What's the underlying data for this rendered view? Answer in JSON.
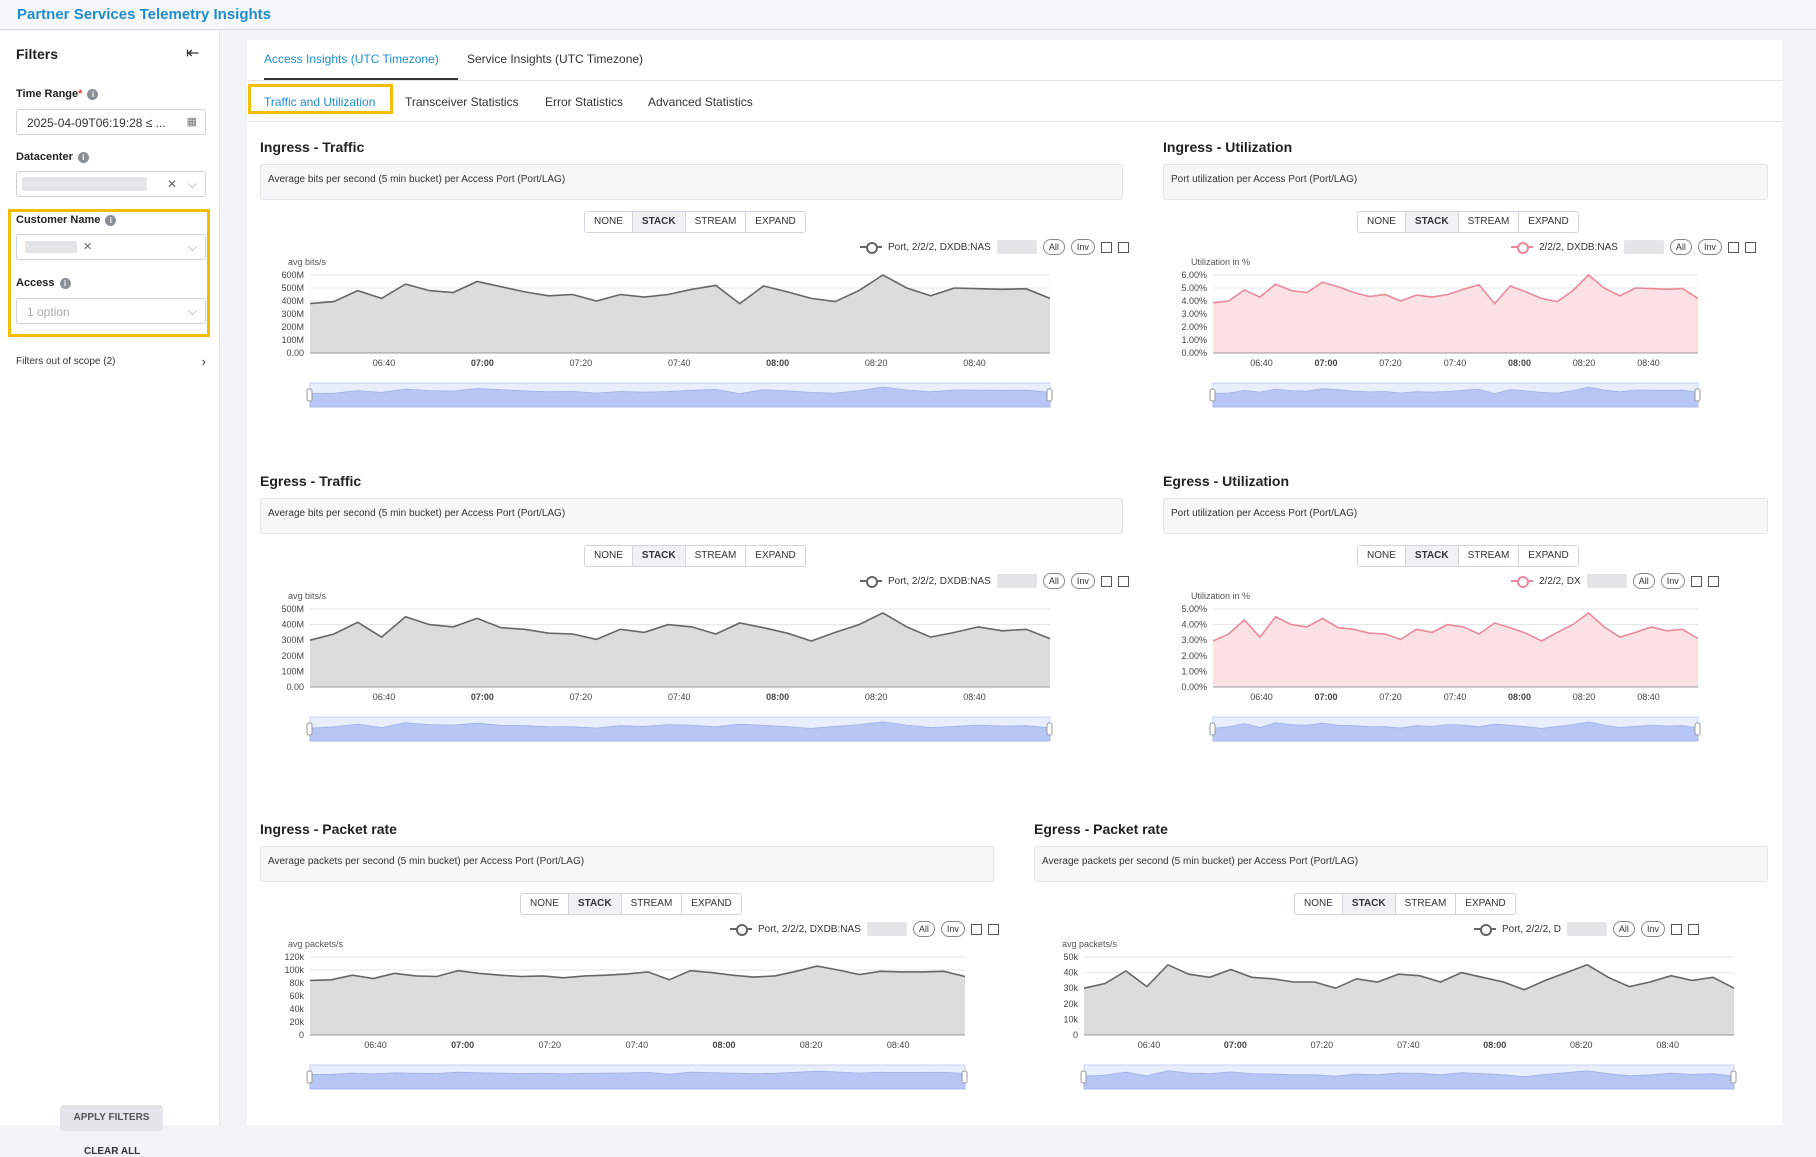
{
  "app": {
    "title": "Partner Services Telemetry Insights"
  },
  "sidebar": {
    "title": "Filters",
    "time_range": {
      "label": "Time Range",
      "required": "*",
      "value": "2025-04-09T06:19:28 ≤ ..."
    },
    "datacenter": {
      "label": "Datacenter"
    },
    "customer_name": {
      "label": "Customer Name"
    },
    "access": {
      "label": "Access",
      "placeholder": "1 option"
    },
    "filters_out_of_scope": "Filters out of scope (2)",
    "apply_label": "APPLY FILTERS",
    "clear_label": "CLEAR ALL"
  },
  "tabs_primary": [
    {
      "label": "Access Insights (UTC Timezone)",
      "active": true
    },
    {
      "label": "Service Insights (UTC Timezone)",
      "active": false
    }
  ],
  "tabs_secondary": [
    {
      "label": "Traffic and Utilization",
      "active": true
    },
    {
      "label": "Transceiver Statistics",
      "active": false
    },
    {
      "label": "Error Statistics",
      "active": false
    },
    {
      "label": "Advanced Statistics",
      "active": false
    }
  ],
  "stack_modes": [
    "NONE",
    "STACK",
    "STREAM",
    "EXPAND"
  ],
  "active_mode": "STACK",
  "legend_controls": {
    "all": "All",
    "inv": "Inv"
  },
  "x_ticks": [
    {
      "label": "06:40",
      "bold": false
    },
    {
      "label": "07:00",
      "bold": true
    },
    {
      "label": "07:20",
      "bold": false
    },
    {
      "label": "07:40",
      "bold": false
    },
    {
      "label": "08:00",
      "bold": true
    },
    {
      "label": "08:20",
      "bold": false
    },
    {
      "label": "08:40",
      "bold": false
    }
  ],
  "chart_data": [
    {
      "type": "area",
      "title": "Ingress - Traffic",
      "description": "Average bits per second (5 min bucket) per Access Port (Port/LAG)",
      "ylabel": "avg bits/s",
      "y_ticks": [
        "0.00",
        "100M",
        "200M",
        "300M",
        "400M",
        "500M",
        "600M"
      ],
      "ylim": [
        0,
        600
      ],
      "color": "#666666",
      "fill": "#dcdcdc",
      "series": [
        {
          "name": "Port, 2/2/2, DXDB:NAS",
          "values": [
            380,
            395,
            480,
            420,
            530,
            480,
            465,
            550,
            510,
            470,
            440,
            450,
            400,
            450,
            430,
            450,
            490,
            520,
            380,
            515,
            470,
            420,
            395,
            480,
            600,
            500,
            440,
            500,
            495,
            490,
            495,
            420
          ]
        }
      ]
    },
    {
      "type": "area",
      "title": "Ingress - Utilization",
      "description": "Port utilization per Access Port (Port/LAG)",
      "ylabel": "Utilization in %",
      "y_ticks": [
        "0.00%",
        "1.00%",
        "2.00%",
        "3.00%",
        "4.00%",
        "5.00%",
        "6.00%"
      ],
      "ylim": [
        0,
        6
      ],
      "color": "#e88a9a",
      "fill": "#fbe0e4",
      "series": [
        {
          "name": "2/2/2, DXDB:NAS",
          "values": [
            3.85,
            4.0,
            4.85,
            4.3,
            5.3,
            4.8,
            4.65,
            5.45,
            5.1,
            4.65,
            4.35,
            4.5,
            4.0,
            4.45,
            4.3,
            4.5,
            4.9,
            5.25,
            3.8,
            5.15,
            4.7,
            4.2,
            3.95,
            4.8,
            6.0,
            5.0,
            4.4,
            5.0,
            4.95,
            4.9,
            4.95,
            4.2
          ]
        }
      ]
    },
    {
      "type": "area",
      "title": "Egress - Traffic",
      "description": "Average bits per second (5 min bucket) per Access Port (Port/LAG)",
      "ylabel": "avg bits/s",
      "y_ticks": [
        "0.00",
        "100M",
        "200M",
        "300M",
        "400M",
        "500M"
      ],
      "ylim": [
        0,
        500
      ],
      "color": "#666666",
      "fill": "#dcdcdc",
      "series": [
        {
          "name": "Port, 2/2/2, DXDB:NAS",
          "values": [
            300,
            340,
            415,
            320,
            450,
            400,
            385,
            440,
            380,
            370,
            345,
            340,
            305,
            370,
            350,
            400,
            385,
            340,
            410,
            380,
            345,
            295,
            350,
            400,
            475,
            385,
            320,
            350,
            385,
            360,
            370,
            310
          ]
        }
      ]
    },
    {
      "type": "area",
      "title": "Egress - Utilization",
      "description": "Port utilization per Access Port (Port/LAG)",
      "ylabel": "Utilization in %",
      "y_ticks": [
        "0.00%",
        "1.00%",
        "2.00%",
        "3.00%",
        "4.00%",
        "5.00%"
      ],
      "ylim": [
        0,
        5
      ],
      "color": "#e88a9a",
      "fill": "#fbe0e4",
      "series": [
        {
          "name": "2/2/2, DX",
          "values": [
            2.95,
            3.4,
            4.3,
            3.2,
            4.5,
            4.0,
            3.85,
            4.4,
            3.8,
            3.7,
            3.45,
            3.4,
            3.05,
            3.7,
            3.5,
            4.0,
            3.85,
            3.4,
            4.1,
            3.8,
            3.45,
            2.95,
            3.5,
            4.0,
            4.75,
            3.85,
            3.2,
            3.5,
            3.85,
            3.6,
            3.7,
            3.1
          ]
        }
      ]
    },
    {
      "type": "area",
      "title": "Ingress - Packet rate",
      "description": "Average packets per second (5 min bucket) per Access Port (Port/LAG)",
      "ylabel": "avg packets/s",
      "y_ticks": [
        "0",
        "20k",
        "40k",
        "60k",
        "80k",
        "100k",
        "120k"
      ],
      "ylim": [
        0,
        120
      ],
      "color": "#666666",
      "fill": "#dcdcdc",
      "series": [
        {
          "name": "Port, 2/2/2, DXDB:NAS",
          "values": [
            84,
            85,
            92,
            87,
            95,
            91,
            90,
            99,
            95,
            92,
            90,
            91,
            88,
            91,
            92,
            94,
            97,
            85,
            99,
            96,
            92,
            89,
            91,
            98,
            106,
            100,
            93,
            98,
            97,
            97,
            98,
            90
          ]
        }
      ]
    },
    {
      "type": "area",
      "title": "Egress - Packet rate",
      "description": "Average packets per second (5 min bucket) per Access Port (Port/LAG)",
      "ylabel": "avg packets/s",
      "y_ticks": [
        "0",
        "10k",
        "20k",
        "30k",
        "40k",
        "50k"
      ],
      "ylim": [
        0,
        50
      ],
      "color": "#666666",
      "fill": "#dcdcdc",
      "series": [
        {
          "name": "Port, 2/2/2, D",
          "values": [
            30,
            33,
            41,
            31,
            45,
            39,
            37,
            42,
            37,
            36,
            34,
            34,
            30,
            36,
            34,
            39,
            38,
            34,
            40,
            37,
            34,
            29,
            35,
            40,
            45,
            37,
            31,
            34,
            38,
            35,
            37,
            30
          ]
        }
      ]
    }
  ]
}
